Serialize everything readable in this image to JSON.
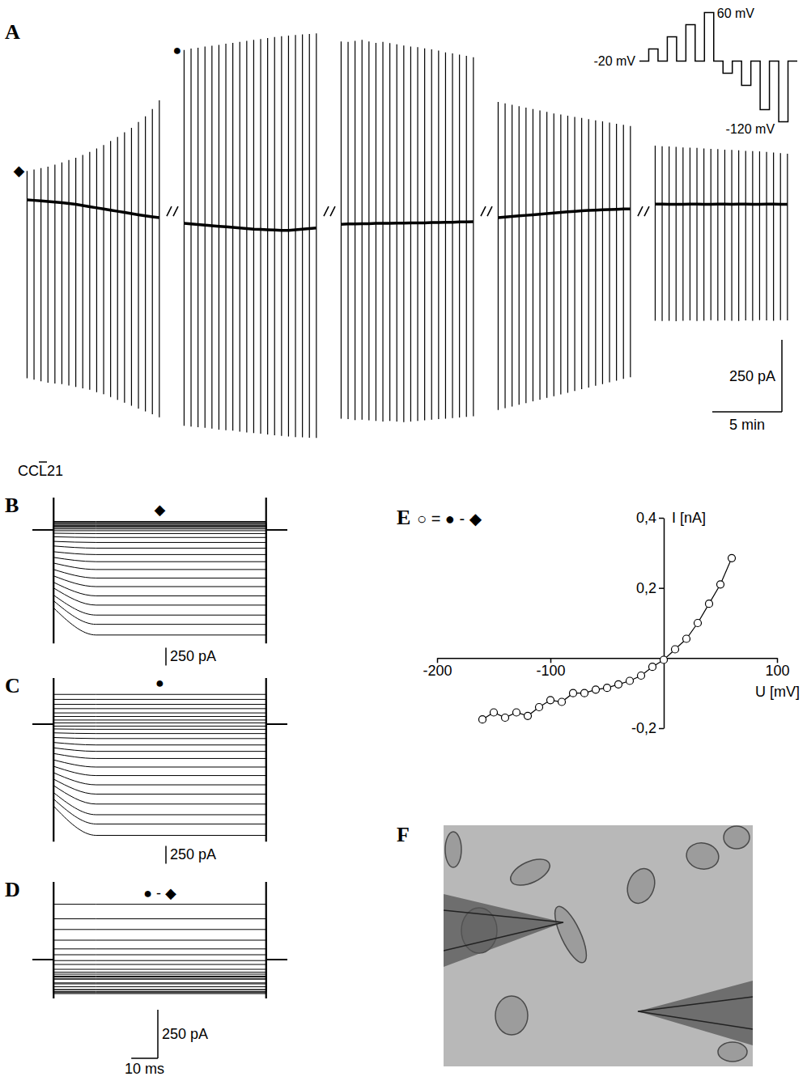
{
  "chart_data": [
    {
      "type": "timecourse",
      "panel": "A",
      "annotation": "CCL21",
      "xlim": [
        0,
        10
      ],
      "ylim": [
        -820,
        700
      ],
      "scale_bars": {
        "y": {
          "value": 250,
          "label": "250 pA"
        },
        "x": {
          "value": 5,
          "label": "5 min"
        }
      },
      "segments": [
        {
          "label": "◆",
          "t": [
            0.2,
            0.7,
            1.2,
            1.7,
            2.2,
            2.7,
            3.2,
            3.7,
            4.2,
            4.7,
            5.2,
            5.7,
            6.2,
            6.7,
            7.2,
            7.7,
            8.2,
            8.7,
            9.2,
            9.7
          ],
          "max": [
            140,
            145,
            150,
            155,
            162,
            170,
            178,
            186,
            196,
            206,
            218,
            230,
            244,
            258,
            274,
            290,
            310,
            330,
            355,
            385
          ],
          "min": [
            -580,
            -585,
            -590,
            -595,
            -598,
            -600,
            -605,
            -610,
            -615,
            -620,
            -628,
            -635,
            -645,
            -655,
            -665,
            -675,
            -685,
            -695,
            -705,
            -715
          ],
          "baseline": [
            40,
            38,
            36,
            34,
            32,
            30,
            27,
            24,
            20,
            16,
            12,
            8,
            4,
            0,
            -4,
            -8,
            -12,
            -16,
            -19,
            -22
          ]
        },
        {
          "label": "●",
          "t": [
            0.2,
            0.7,
            1.2,
            1.7,
            2.2,
            2.7,
            3.2,
            3.7,
            4.2,
            4.7,
            5.2,
            5.7,
            6.2,
            6.7,
            7.2,
            7.7,
            8.2,
            8.7,
            9.2,
            9.7
          ],
          "max": [
            560,
            565,
            568,
            572,
            575,
            578,
            582,
            585,
            588,
            592,
            595,
            598,
            602,
            605,
            608,
            610,
            612,
            614,
            616,
            618
          ],
          "min": [
            -745,
            -748,
            -750,
            -752,
            -755,
            -758,
            -760,
            -762,
            -765,
            -768,
            -770,
            -772,
            -775,
            -778,
            -780,
            -782,
            -784,
            -785,
            -786,
            -787
          ],
          "baseline": [
            -42,
            -44,
            -46,
            -48,
            -50,
            -52,
            -54,
            -56,
            -58,
            -60,
            -62,
            -63,
            -64,
            -65,
            -66,
            -66,
            -64,
            -62,
            -60,
            -58
          ]
        },
        {
          "t": [
            0.2,
            0.7,
            1.2,
            1.7,
            2.2,
            2.7,
            3.2,
            3.7,
            4.2,
            4.7,
            5.2,
            5.7,
            6.2,
            6.7,
            7.2,
            7.7,
            8.2,
            8.7,
            9.2,
            9.7
          ],
          "max": [
            590,
            588,
            592,
            595,
            590,
            585,
            588,
            584,
            580,
            576,
            572,
            570,
            566,
            562,
            558,
            552,
            548,
            544,
            540,
            535
          ],
          "min": [
            -720,
            -722,
            -725,
            -724,
            -726,
            -728,
            -730,
            -728,
            -730,
            -732,
            -730,
            -728,
            -726,
            -724,
            -722,
            -720,
            -718,
            -716,
            -714,
            -712
          ],
          "baseline": [
            -45,
            -44,
            -44,
            -43,
            -43,
            -42,
            -42,
            -42,
            -41,
            -41,
            -40,
            -40,
            -40,
            -39,
            -39,
            -38,
            -38,
            -37,
            -37,
            -36
          ]
        },
        {
          "t": [
            0.2,
            0.7,
            1.2,
            1.7,
            2.2,
            2.7,
            3.2,
            3.7,
            4.2,
            4.7,
            5.2,
            5.7,
            6.2,
            6.7,
            7.2,
            7.7,
            8.2,
            8.7,
            9.2,
            9.7
          ],
          "max": [
            380,
            375,
            370,
            365,
            360,
            355,
            350,
            345,
            340,
            336,
            332,
            328,
            324,
            320,
            316,
            312,
            308,
            304,
            300,
            296
          ],
          "min": [
            -690,
            -684,
            -678,
            -672,
            -666,
            -660,
            -654,
            -648,
            -642,
            -636,
            -630,
            -624,
            -618,
            -612,
            -606,
            -600,
            -594,
            -588,
            -582,
            -576
          ],
          "baseline": [
            -22,
            -20,
            -18,
            -16,
            -14,
            -12,
            -10,
            -8,
            -6,
            -4,
            -2,
            0,
            2,
            3,
            4,
            5,
            6,
            7,
            8,
            8
          ]
        },
        {
          "t": [
            0.2,
            0.7,
            1.2,
            1.7,
            2.2,
            2.7,
            3.2,
            3.7,
            4.2,
            4.7,
            5.2,
            5.7,
            6.2,
            6.7,
            7.2,
            7.7,
            8.2,
            8.7,
            9.2,
            9.7
          ],
          "max": [
            228,
            226,
            225,
            224,
            222,
            221,
            220,
            218,
            217,
            216,
            214,
            213,
            212,
            210,
            209,
            208,
            206,
            204,
            202,
            200
          ],
          "min": [
            -380,
            -381,
            -380,
            -382,
            -380,
            -379,
            -381,
            -380,
            -378,
            -380,
            -379,
            -380,
            -381,
            -379,
            -380,
            -378,
            -379,
            -380,
            -378,
            -379
          ],
          "baseline": [
            25,
            25,
            24,
            24,
            24,
            25,
            25,
            24,
            24,
            25,
            25,
            24,
            25,
            25,
            24,
            24,
            25,
            25,
            24,
            24
          ]
        }
      ]
    },
    {
      "type": "protocol",
      "ylim": [
        -130,
        70
      ],
      "levels": [
        -20,
        0,
        -20,
        20,
        -20,
        40,
        -20,
        60,
        -20,
        -40,
        -20,
        -60,
        -20,
        -100,
        -20,
        -120,
        -20
      ],
      "labels": [
        {
          "value": 60,
          "label": "60 mV"
        },
        {
          "value": -20,
          "label": "-20 mV"
        },
        {
          "value": -120,
          "label": "-120 mV"
        }
      ]
    },
    {
      "type": "traces",
      "panel": "B",
      "title": "◆",
      "xlim": [
        -8,
        88
      ],
      "ylim": [
        -1600,
        450
      ],
      "pulse": [
        0,
        80
      ],
      "holding": 0,
      "initial": [
        -1100,
        -1000,
        -920,
        -820,
        -740,
        -650,
        -560,
        -470,
        -390,
        -310,
        -230,
        -165,
        -100,
        -50,
        -15,
        10,
        30,
        45,
        60,
        75,
        88,
        100,
        115
      ],
      "steady": [
        -1480,
        -1330,
        -1200,
        -1060,
        -930,
        -800,
        -680,
        -560,
        -450,
        -350,
        -260,
        -180,
        -110,
        -55,
        -15,
        10,
        30,
        45,
        60,
        75,
        88,
        100,
        115
      ],
      "scale_bars": {
        "y": {
          "value": 250,
          "label": "250 pA"
        }
      }
    },
    {
      "type": "traces",
      "panel": "C",
      "title": "●",
      "xlim": [
        -8,
        88
      ],
      "ylim": [
        -1650,
        650
      ],
      "pulse": [
        0,
        80
      ],
      "holding": 0,
      "initial": [
        -1150,
        -1050,
        -960,
        -860,
        -770,
        -680,
        -590,
        -500,
        -410,
        -330,
        -255,
        -185,
        -120,
        -65,
        -25,
        20,
        60,
        110,
        160,
        220,
        280,
        350,
        420
      ],
      "steady": [
        -1560,
        -1400,
        -1270,
        -1120,
        -980,
        -850,
        -720,
        -600,
        -480,
        -380,
        -290,
        -200,
        -130,
        -70,
        -25,
        20,
        60,
        110,
        160,
        220,
        280,
        350,
        420
      ],
      "scale_bars": {
        "y": {
          "value": 250,
          "label": "250 pA"
        }
      }
    },
    {
      "type": "traces",
      "panel": "D",
      "title": "● - ◆",
      "xlim": [
        -8,
        88
      ],
      "ylim": [
        -200,
        400
      ],
      "pulse": [
        0,
        80
      ],
      "holding": 0,
      "initial": [
        -175,
        -155,
        -170,
        -155,
        -165,
        -140,
        -120,
        -125,
        -100,
        -100,
        -90,
        -85,
        -75,
        -65,
        -50,
        -25,
        -5,
        25,
        55,
        100,
        155,
        210,
        285
      ],
      "steady": [
        -175,
        -155,
        -170,
        -155,
        -165,
        -140,
        -120,
        -125,
        -100,
        -100,
        -90,
        -85,
        -75,
        -65,
        -50,
        -25,
        -5,
        25,
        55,
        100,
        155,
        210,
        285
      ],
      "scale_bars": {
        "y": {
          "value": 250,
          "label": "250 pA"
        },
        "x": {
          "value": 10,
          "label": "10 ms"
        }
      }
    },
    {
      "type": "line",
      "panel": "E",
      "title": "○ = ● - ◆",
      "x_label": "U [mV]",
      "y_label": "I [nA]",
      "marker": "open-circle",
      "line_style": "solid",
      "xlim": [
        -200,
        100
      ],
      "ylim": [
        -0.2,
        0.4
      ],
      "xticks": [
        -200,
        -100,
        100
      ],
      "yticks": [
        {
          "value": -0.2,
          "label": "-0,2"
        },
        {
          "value": 0.2,
          "label": "0,2"
        },
        {
          "value": 0.4,
          "label": "0,4"
        }
      ],
      "x": [
        -160,
        -150,
        -140,
        -130,
        -120,
        -110,
        -100,
        -90,
        -80,
        -70,
        -60,
        -50,
        -40,
        -30,
        -20,
        -10,
        0,
        10,
        20,
        30,
        40,
        50,
        60
      ],
      "values": [
        -0.175,
        -0.155,
        -0.17,
        -0.155,
        -0.165,
        -0.14,
        -0.12,
        -0.125,
        -0.1,
        -0.1,
        -0.09,
        -0.085,
        -0.075,
        -0.065,
        -0.05,
        -0.025,
        -0.005,
        0.025,
        0.055,
        0.1,
        0.155,
        0.21,
        0.285
      ]
    },
    {
      "type": "image",
      "panel": "F"
    }
  ]
}
